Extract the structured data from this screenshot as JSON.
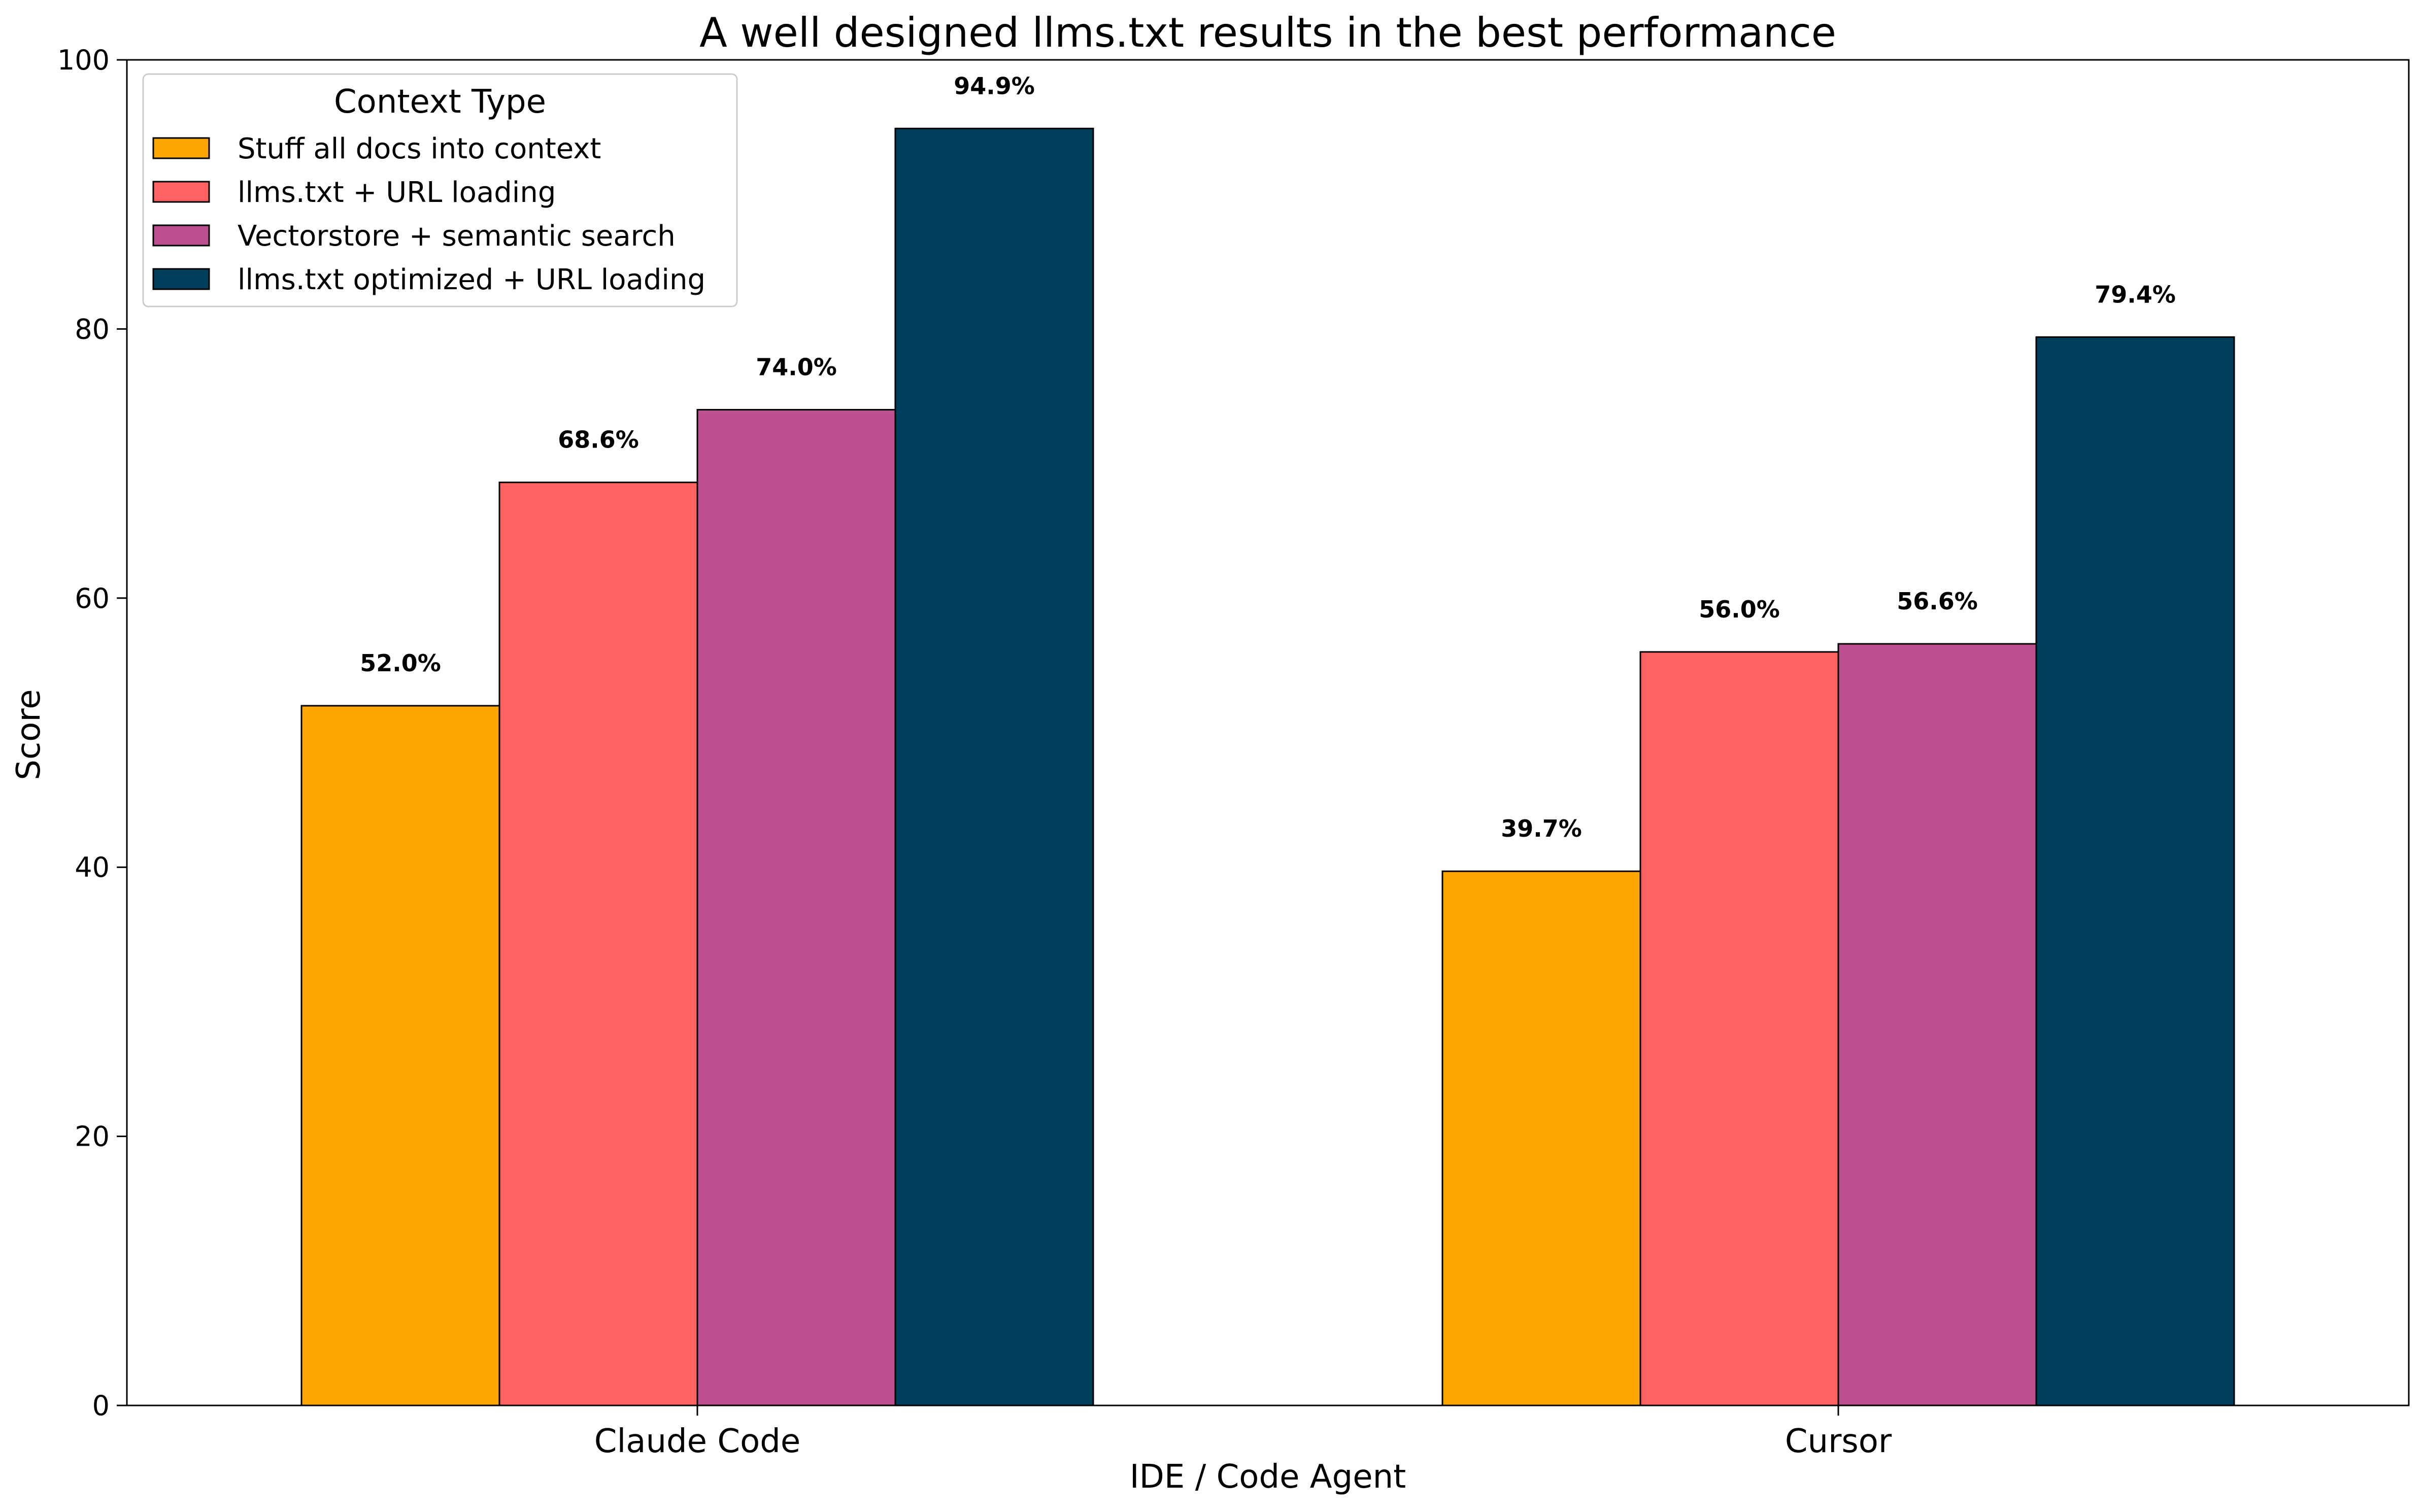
{
  "chart_data": {
    "type": "bar",
    "title": "A well designed llms.txt results in the best performance",
    "xlabel": "IDE / Code Agent",
    "ylabel": "Score",
    "ylim": [
      0,
      100
    ],
    "yticks": [
      0,
      20,
      40,
      60,
      80,
      100
    ],
    "grid": false,
    "categories": [
      "Claude Code",
      "Cursor"
    ],
    "legend": {
      "title": "Context Type",
      "placement": "top-left"
    },
    "series": [
      {
        "name": "Stuff all docs into context",
        "color": "#FFA500",
        "values": [
          52.0,
          39.7
        ],
        "labels": [
          "52.0%",
          "39.7%"
        ]
      },
      {
        "name": "llms.txt + URL loading",
        "color": "#FF6361",
        "values": [
          68.6,
          56.0
        ],
        "labels": [
          "68.6%",
          "56.0%"
        ]
      },
      {
        "name": "Vectorstore + semantic search",
        "color": "#BC5090",
        "values": [
          74.0,
          56.6
        ],
        "labels": [
          "74.0%",
          "56.6%"
        ]
      },
      {
        "name": "llms.txt optimized + URL loading",
        "color": "#003F5C",
        "values": [
          94.9,
          79.4
        ],
        "labels": [
          "94.9%",
          "79.4%"
        ]
      }
    ]
  }
}
